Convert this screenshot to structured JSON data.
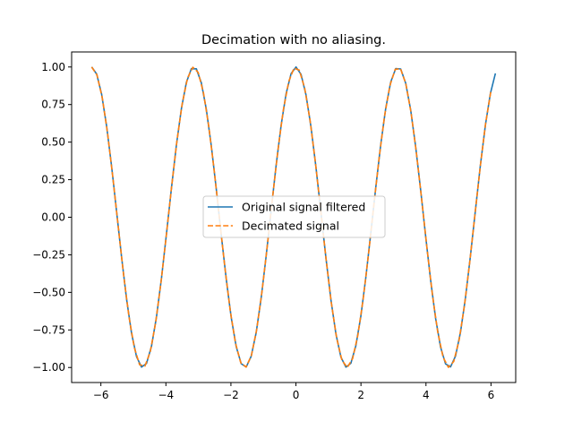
{
  "chart_data": {
    "type": "line",
    "title": "Decimation with no aliasing.",
    "xlabel": "",
    "ylabel": "",
    "xlim": [
      -6.9,
      6.76
    ],
    "ylim": [
      -1.1,
      1.1
    ],
    "xticks": [
      -6,
      -4,
      -2,
      0,
      2,
      4,
      6
    ],
    "xtick_labels": [
      "−6",
      "−4",
      "−2",
      "0",
      "2",
      "4",
      "6"
    ],
    "yticks": [
      -1.0,
      -0.75,
      -0.5,
      -0.25,
      0.0,
      0.25,
      0.5,
      0.75,
      1.0
    ],
    "ytick_labels": [
      "−1.00",
      "−0.75",
      "−0.50",
      "−0.25",
      "0.00",
      "0.25",
      "0.50",
      "0.75",
      "1.00"
    ],
    "grid": false,
    "legend_position": "center",
    "series": [
      {
        "name": "Original signal filtered",
        "color": "#1f77b4",
        "style": "solid",
        "function": "cos(2x)",
        "x_start": -6.283,
        "x_end": 6.136,
        "samples": 82
      },
      {
        "name": "Decimated signal",
        "color": "#ff7f0e",
        "style": "dashed",
        "function": "cos(2x)",
        "x_start": -6.283,
        "x_end": 6.0,
        "samples": 76
      }
    ]
  }
}
